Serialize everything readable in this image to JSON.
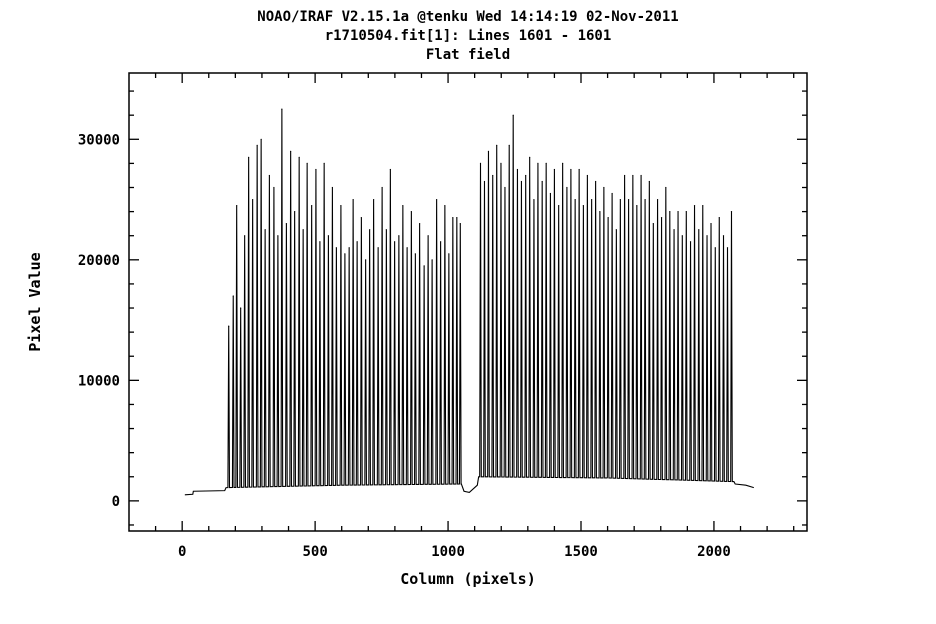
{
  "header": {
    "line1": "NOAO/IRAF V2.15.1a @tenku Wed 14:14:19 02-Nov-2011",
    "line2": "r1710504.fit[1]: Lines 1601 - 1601",
    "line3": "Flat field"
  },
  "chart_data": {
    "type": "line",
    "title": "Flat field",
    "xlabel": "Column (pixels)",
    "ylabel": "Pixel Value",
    "xlim": [
      -200,
      2350
    ],
    "ylim": [
      -2500,
      35500
    ],
    "xticks": [
      0,
      500,
      1000,
      1500,
      2000
    ],
    "yticks": [
      0,
      10000,
      20000,
      30000
    ],
    "grid": false,
    "baseline": [
      {
        "x": 10,
        "y": 500
      },
      {
        "x": 40,
        "y": 550
      },
      {
        "x": 42,
        "y": 800
      },
      {
        "x": 160,
        "y": 850
      },
      {
        "x": 165,
        "y": 1100
      },
      {
        "x": 600,
        "y": 1300
      },
      {
        "x": 1050,
        "y": 1400
      },
      {
        "x": 1060,
        "y": 800
      },
      {
        "x": 1080,
        "y": 700
      },
      {
        "x": 1110,
        "y": 1300
      },
      {
        "x": 1115,
        "y": 2000
      },
      {
        "x": 1600,
        "y": 1900
      },
      {
        "x": 2075,
        "y": 1600
      },
      {
        "x": 2080,
        "y": 1400
      },
      {
        "x": 2120,
        "y": 1300
      },
      {
        "x": 2150,
        "y": 1100
      }
    ],
    "peaks": [
      {
        "x": 175,
        "y": 14500
      },
      {
        "x": 192,
        "y": 17000
      },
      {
        "x": 205,
        "y": 24500
      },
      {
        "x": 220,
        "y": 16000
      },
      {
        "x": 235,
        "y": 22000
      },
      {
        "x": 250,
        "y": 28500
      },
      {
        "x": 265,
        "y": 25000
      },
      {
        "x": 282,
        "y": 29500
      },
      {
        "x": 297,
        "y": 30000
      },
      {
        "x": 312,
        "y": 22500
      },
      {
        "x": 328,
        "y": 27000
      },
      {
        "x": 345,
        "y": 26000
      },
      {
        "x": 360,
        "y": 22000
      },
      {
        "x": 375,
        "y": 32500
      },
      {
        "x": 392,
        "y": 23000
      },
      {
        "x": 408,
        "y": 29000
      },
      {
        "x": 423,
        "y": 24000
      },
      {
        "x": 440,
        "y": 28500
      },
      {
        "x": 455,
        "y": 22500
      },
      {
        "x": 470,
        "y": 28000
      },
      {
        "x": 487,
        "y": 24500
      },
      {
        "x": 503,
        "y": 27500
      },
      {
        "x": 518,
        "y": 21500
      },
      {
        "x": 534,
        "y": 28000
      },
      {
        "x": 550,
        "y": 22000
      },
      {
        "x": 565,
        "y": 26000
      },
      {
        "x": 580,
        "y": 21000
      },
      {
        "x": 597,
        "y": 24500
      },
      {
        "x": 612,
        "y": 20500
      },
      {
        "x": 628,
        "y": 21000
      },
      {
        "x": 643,
        "y": 25000
      },
      {
        "x": 658,
        "y": 21500
      },
      {
        "x": 674,
        "y": 23500
      },
      {
        "x": 690,
        "y": 20000
      },
      {
        "x": 705,
        "y": 22500
      },
      {
        "x": 720,
        "y": 25000
      },
      {
        "x": 737,
        "y": 21000
      },
      {
        "x": 752,
        "y": 26000
      },
      {
        "x": 768,
        "y": 22500
      },
      {
        "x": 783,
        "y": 27500
      },
      {
        "x": 799,
        "y": 21500
      },
      {
        "x": 815,
        "y": 22000
      },
      {
        "x": 830,
        "y": 24500
      },
      {
        "x": 846,
        "y": 21000
      },
      {
        "x": 862,
        "y": 24000
      },
      {
        "x": 877,
        "y": 20500
      },
      {
        "x": 893,
        "y": 23000
      },
      {
        "x": 910,
        "y": 19500
      },
      {
        "x": 925,
        "y": 22000
      },
      {
        "x": 940,
        "y": 20000
      },
      {
        "x": 957,
        "y": 25000
      },
      {
        "x": 972,
        "y": 21500
      },
      {
        "x": 988,
        "y": 24500
      },
      {
        "x": 1003,
        "y": 20500
      },
      {
        "x": 1018,
        "y": 23500
      },
      {
        "x": 1033,
        "y": 23500
      },
      {
        "x": 1046,
        "y": 23000
      },
      {
        "x": 1122,
        "y": 28000
      },
      {
        "x": 1137,
        "y": 26500
      },
      {
        "x": 1152,
        "y": 29000
      },
      {
        "x": 1168,
        "y": 27000
      },
      {
        "x": 1183,
        "y": 29500
      },
      {
        "x": 1199,
        "y": 28000
      },
      {
        "x": 1214,
        "y": 26000
      },
      {
        "x": 1230,
        "y": 29500
      },
      {
        "x": 1245,
        "y": 32000
      },
      {
        "x": 1261,
        "y": 27500
      },
      {
        "x": 1276,
        "y": 26500
      },
      {
        "x": 1292,
        "y": 27000
      },
      {
        "x": 1307,
        "y": 28500
      },
      {
        "x": 1323,
        "y": 25000
      },
      {
        "x": 1338,
        "y": 28000
      },
      {
        "x": 1354,
        "y": 26500
      },
      {
        "x": 1369,
        "y": 28000
      },
      {
        "x": 1385,
        "y": 25500
      },
      {
        "x": 1400,
        "y": 27500
      },
      {
        "x": 1416,
        "y": 24500
      },
      {
        "x": 1431,
        "y": 28000
      },
      {
        "x": 1447,
        "y": 26000
      },
      {
        "x": 1462,
        "y": 27500
      },
      {
        "x": 1478,
        "y": 25000
      },
      {
        "x": 1493,
        "y": 27500
      },
      {
        "x": 1509,
        "y": 24500
      },
      {
        "x": 1524,
        "y": 27000
      },
      {
        "x": 1540,
        "y": 25000
      },
      {
        "x": 1555,
        "y": 26500
      },
      {
        "x": 1571,
        "y": 24000
      },
      {
        "x": 1586,
        "y": 26000
      },
      {
        "x": 1602,
        "y": 23500
      },
      {
        "x": 1617,
        "y": 25500
      },
      {
        "x": 1633,
        "y": 22500
      },
      {
        "x": 1648,
        "y": 25000
      },
      {
        "x": 1664,
        "y": 27000
      },
      {
        "x": 1679,
        "y": 25000
      },
      {
        "x": 1695,
        "y": 27000
      },
      {
        "x": 1710,
        "y": 24500
      },
      {
        "x": 1726,
        "y": 27000
      },
      {
        "x": 1741,
        "y": 25000
      },
      {
        "x": 1757,
        "y": 26500
      },
      {
        "x": 1772,
        "y": 23000
      },
      {
        "x": 1788,
        "y": 25000
      },
      {
        "x": 1803,
        "y": 23500
      },
      {
        "x": 1819,
        "y": 26000
      },
      {
        "x": 1834,
        "y": 24000
      },
      {
        "x": 1850,
        "y": 22500
      },
      {
        "x": 1865,
        "y": 24000
      },
      {
        "x": 1881,
        "y": 22000
      },
      {
        "x": 1896,
        "y": 24000
      },
      {
        "x": 1912,
        "y": 21500
      },
      {
        "x": 1927,
        "y": 24500
      },
      {
        "x": 1943,
        "y": 22500
      },
      {
        "x": 1958,
        "y": 24500
      },
      {
        "x": 1974,
        "y": 22000
      },
      {
        "x": 1989,
        "y": 23000
      },
      {
        "x": 2005,
        "y": 21000
      },
      {
        "x": 2020,
        "y": 23500
      },
      {
        "x": 2036,
        "y": 22000
      },
      {
        "x": 2051,
        "y": 21000
      },
      {
        "x": 2066,
        "y": 24000
      }
    ]
  }
}
